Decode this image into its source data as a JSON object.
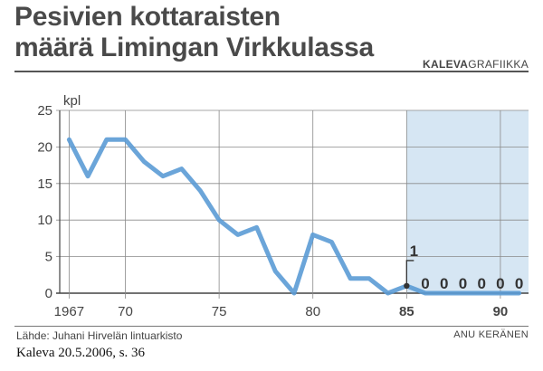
{
  "header": {
    "title_line1": "Pesivien kottaraisten",
    "title_line2": "määrä Limingan Virkkulassa",
    "brand_bold": "KALEVA",
    "brand_light": "GRAFIIKKA"
  },
  "footer": {
    "source": "Lähde: Juhani Hirvelän lintuarkisto",
    "author": "ANU KERÄNEN",
    "caption": "Kaleva 20.5.2006, s. 36"
  },
  "chart_data": {
    "type": "line",
    "ylabel": "kpl",
    "xlim": [
      1966.5,
      1991.5
    ],
    "ylim": [
      0,
      25
    ],
    "yticks": [
      0,
      5,
      10,
      15,
      20,
      25
    ],
    "xticks": [
      {
        "value": 1967,
        "label": "1967",
        "bold": false
      },
      {
        "value": 1970,
        "label": "70",
        "bold": false
      },
      {
        "value": 1975,
        "label": "75",
        "bold": false
      },
      {
        "value": 1980,
        "label": "80",
        "bold": false
      },
      {
        "value": 1985,
        "label": "85",
        "bold": true
      },
      {
        "value": 1990,
        "label": "90",
        "bold": true
      }
    ],
    "grid": true,
    "shaded_region": [
      1985,
      1991.5
    ],
    "series": [
      {
        "color": "#5b9bd5",
        "x": [
          1967,
          1968,
          1969,
          1970,
          1971,
          1972,
          1973,
          1974,
          1975,
          1976,
          1977,
          1978,
          1979,
          1980,
          1981,
          1982,
          1983,
          1984,
          1985,
          1986,
          1987,
          1988,
          1989,
          1990,
          1991
        ],
        "y": [
          21,
          16,
          21,
          21,
          18,
          16,
          17,
          14,
          10,
          8,
          9,
          3,
          0,
          8,
          7,
          2,
          2,
          0,
          1,
          0,
          0,
          0,
          0,
          0,
          0
        ]
      }
    ],
    "annotations": [
      {
        "x": 1985,
        "y": 1,
        "label": "1",
        "marker": true
      },
      {
        "x": 1986,
        "y": 0,
        "label": "0"
      },
      {
        "x": 1987,
        "y": 0,
        "label": "0"
      },
      {
        "x": 1988,
        "y": 0,
        "label": "0"
      },
      {
        "x": 1989,
        "y": 0,
        "label": "0"
      },
      {
        "x": 1990,
        "y": 0,
        "label": "0"
      },
      {
        "x": 1991,
        "y": 0,
        "label": "0"
      }
    ]
  }
}
